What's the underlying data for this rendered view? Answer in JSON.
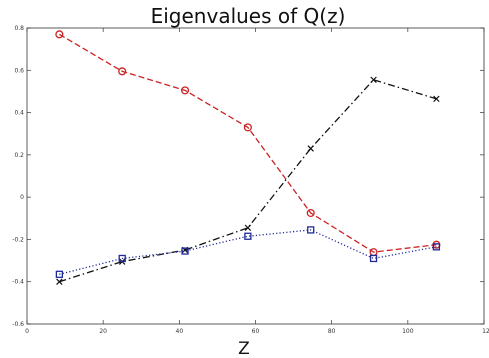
{
  "chart_data": {
    "type": "line",
    "title": "Eigenvalues of Q(z)",
    "xlabel": "Z",
    "ylabel": "",
    "xlim": [
      0,
      120
    ],
    "ylim": [
      -0.6,
      0.8
    ],
    "xticks": [
      "0",
      "20",
      "40",
      "60",
      "80",
      "100",
      "12"
    ],
    "yticks": [
      "-0.6",
      "-0.4",
      "-0.2",
      "0",
      "0.2",
      "0.4",
      "0.6",
      "0.8"
    ],
    "grid": false,
    "legend": "none",
    "x": [
      8.5,
      25,
      41.5,
      58,
      74.5,
      91,
      107.5
    ],
    "series": [
      {
        "values": [
          0.77,
          0.595,
          0.505,
          0.33,
          -0.075,
          -0.26,
          -0.225
        ],
        "color": "#cc2222",
        "line_style": "dashed",
        "marker": "circle"
      },
      {
        "values": [
          -0.4,
          -0.305,
          -0.25,
          -0.145,
          0.23,
          0.555,
          0.465
        ],
        "color": "#111111",
        "line_style": "dash-dot",
        "marker": "x"
      },
      {
        "values": [
          -0.365,
          -0.29,
          -0.255,
          -0.185,
          -0.155,
          -0.29,
          -0.235
        ],
        "color": "#1f2a9a",
        "line_style": "dotted",
        "marker": "square"
      }
    ]
  }
}
